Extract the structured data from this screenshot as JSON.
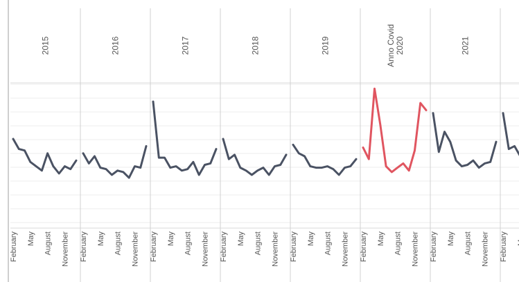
{
  "chart_data": {
    "type": "line",
    "y_axis_visible": false,
    "grid": true,
    "ylim": [
      0,
      100
    ],
    "x_tick_labels": [
      "February",
      "May",
      "August",
      "November"
    ],
    "panels": [
      {
        "header": [
          "2015"
        ],
        "color": "#4a5263",
        "values": [
          62,
          55,
          54,
          46,
          43,
          40,
          52,
          43,
          38,
          43,
          41,
          47
        ]
      },
      {
        "header": [
          "2016"
        ],
        "color": "#4a5263",
        "values": [
          52,
          45,
          50,
          42,
          41,
          37,
          40,
          39,
          35,
          43,
          42,
          57
        ]
      },
      {
        "header": [
          "2017"
        ],
        "color": "#4a5263",
        "values": [
          88,
          49,
          49,
          42,
          43,
          40,
          41,
          46,
          37,
          44,
          45,
          55
        ]
      },
      {
        "header": [
          "2018"
        ],
        "color": "#4a5263",
        "values": [
          62,
          48,
          51,
          42,
          40,
          37,
          40,
          42,
          37,
          43,
          44,
          51
        ]
      },
      {
        "header": [
          "2019"
        ],
        "color": "#4a5263",
        "values": [
          58,
          52,
          50,
          43,
          42,
          42,
          43,
          41,
          37,
          42,
          43,
          48
        ]
      },
      {
        "header": [
          "Anno Covid",
          "2020"
        ],
        "color": "#e05560",
        "values": [
          56,
          48,
          97,
          72,
          43,
          39,
          42,
          45,
          40,
          54,
          87,
          82
        ]
      },
      {
        "header": [
          "2021"
        ],
        "color": "#4a5263",
        "values": [
          80,
          53,
          67,
          60,
          47,
          43,
          44,
          47,
          42,
          45,
          46,
          60
        ]
      },
      {
        "header": [
          ""
        ],
        "color": "#4a5263",
        "values": [
          80,
          55,
          57,
          50
        ]
      }
    ]
  }
}
